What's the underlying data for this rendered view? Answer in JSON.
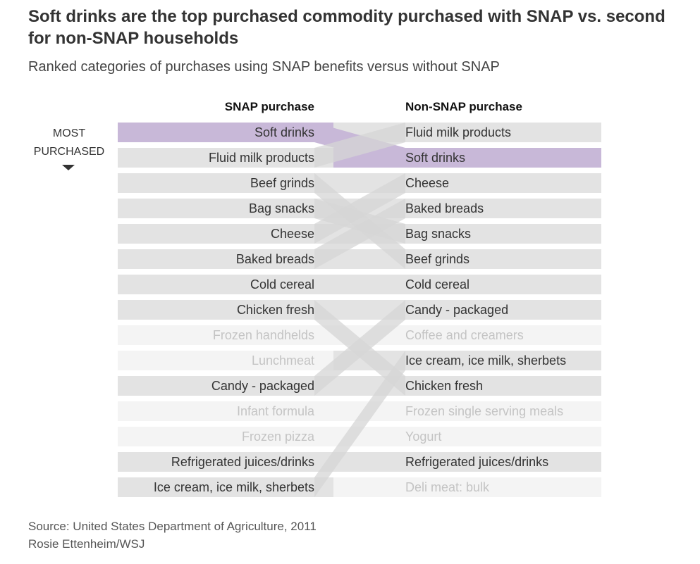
{
  "title": "Soft drinks are the top purchased commodity purchased with SNAP vs. second for non-SNAP households",
  "subtitle": "Ranked categories of purchases using SNAP benefits versus without SNAP",
  "most_purchased_label": "MOST PURCHASED",
  "source": "Source: United States Department of Agriculture, 2011",
  "credit": "Rosie Ettenheim/WSJ",
  "colors": {
    "highlight": "#c8b8d8",
    "bar": "#e3e3e3",
    "bar_faint": "#f4f4f4",
    "text": "#333333",
    "text_faint": "#c4c4c4"
  },
  "chart_data": {
    "type": "table",
    "columns": [
      "SNAP purchase",
      "Non-SNAP purchase"
    ],
    "highlight": "Soft drinks",
    "snap": [
      "Soft drinks",
      "Fluid milk products",
      "Beef grinds",
      "Bag snacks",
      "Cheese",
      "Baked breads",
      "Cold cereal",
      "Chicken fresh",
      "Frozen handhelds",
      "Lunchmeat",
      "Candy - packaged",
      "Infant formula",
      "Frozen pizza",
      "Refrigerated juices/drinks",
      "Ice cream, ice milk, sherbets"
    ],
    "non_snap": [
      "Fluid milk products",
      "Soft drinks",
      "Cheese",
      "Baked breads",
      "Bag snacks",
      "Beef grinds",
      "Cold cereal",
      "Candy - packaged",
      "Coffee and creamers",
      "Ice cream, ice milk, sherbets",
      "Chicken fresh",
      "Frozen single serving meals",
      "Yogurt",
      "Refrigerated juices/drinks",
      "Deli meat: bulk"
    ]
  }
}
